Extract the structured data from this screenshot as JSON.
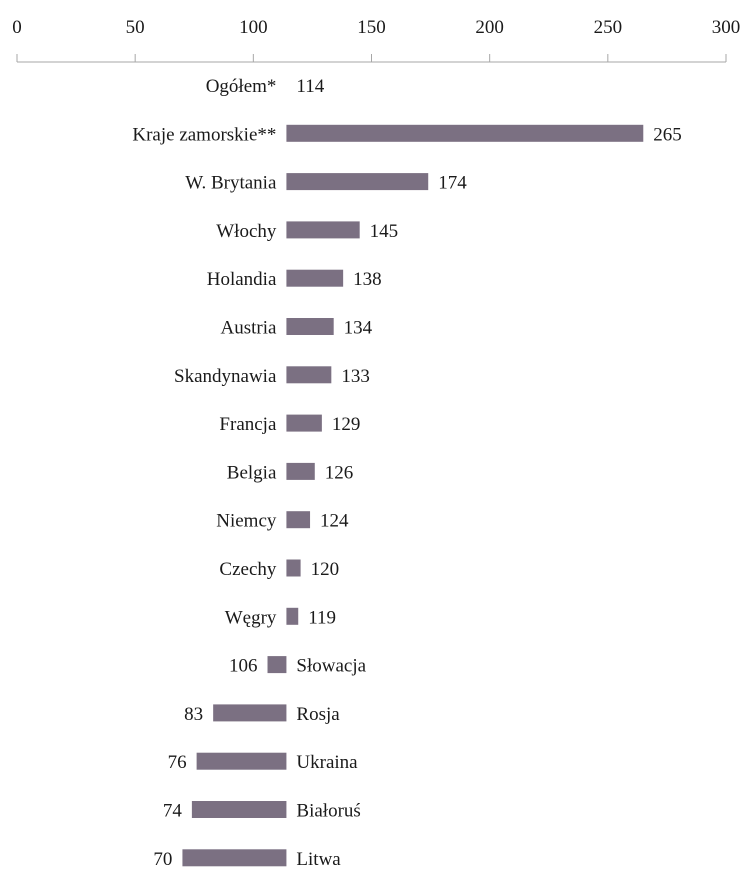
{
  "chart_data": {
    "type": "bar",
    "orientation": "horizontal",
    "baseline": 114,
    "xlim": [
      0,
      300
    ],
    "xticks": [
      "0",
      "50",
      "100",
      "150",
      "200",
      "250",
      "300"
    ],
    "bar_color": "#7b7082",
    "categories": [
      "Ogółem*",
      "Kraje zamorskie**",
      "W. Brytania",
      "Włochy",
      "Holandia",
      "Austria",
      "Skandynawia",
      "Francja",
      "Belgia",
      "Niemcy",
      "Czechy",
      "Węgry",
      "Słowacja",
      "Rosja",
      "Ukraina",
      "Białoruś",
      "Litwa"
    ],
    "values": [
      114,
      265,
      174,
      145,
      138,
      134,
      133,
      129,
      126,
      124,
      120,
      119,
      106,
      83,
      76,
      74,
      70
    ],
    "value_labels": [
      "114",
      "265",
      "174",
      "145",
      "138",
      "134",
      "133",
      "129",
      "126",
      "124",
      "120",
      "119",
      "106",
      "83",
      "76",
      "74",
      "70"
    ]
  }
}
